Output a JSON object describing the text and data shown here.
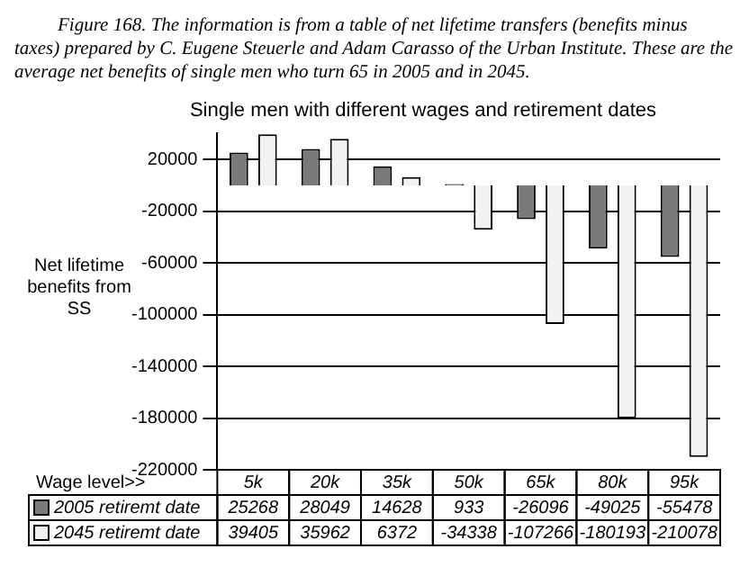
{
  "chart_data": {
    "type": "bar",
    "title": "Single men with different wages and retirement dates",
    "xlabel": "Wage level>>",
    "ylabel": "Net lifetime benefits from SS",
    "annotations": [
      "Figure 168. The information is from a table of net lifetime transfers (benefits minus taxes) prepared by C. Eugene Steuerle and Adam Carasso of the Urban Institute. These are the average net benefits of single men who turn 65 in 2005 and in 2045."
    ],
    "categories": [
      "5k",
      "20k",
      "35k",
      "50k",
      "65k",
      "80k",
      "95k"
    ],
    "series": [
      {
        "name": "2005 retiremt date",
        "color": "#7a7a7a",
        "values": [
          25268,
          28049,
          14628,
          933,
          -26096,
          -49025,
          -55478
        ]
      },
      {
        "name": "2045 retiremt date",
        "color": "#f2f2f2",
        "values": [
          39405,
          35962,
          6372,
          -34338,
          -107266,
          -180193,
          -210078
        ]
      }
    ],
    "ylim": [
      -220000,
      40000
    ],
    "yticks": [
      20000,
      -20000,
      -60000,
      -100000,
      -140000,
      -180000,
      -220000
    ],
    "grid": "y",
    "legend": "bottom",
    "data_labels": true
  }
}
